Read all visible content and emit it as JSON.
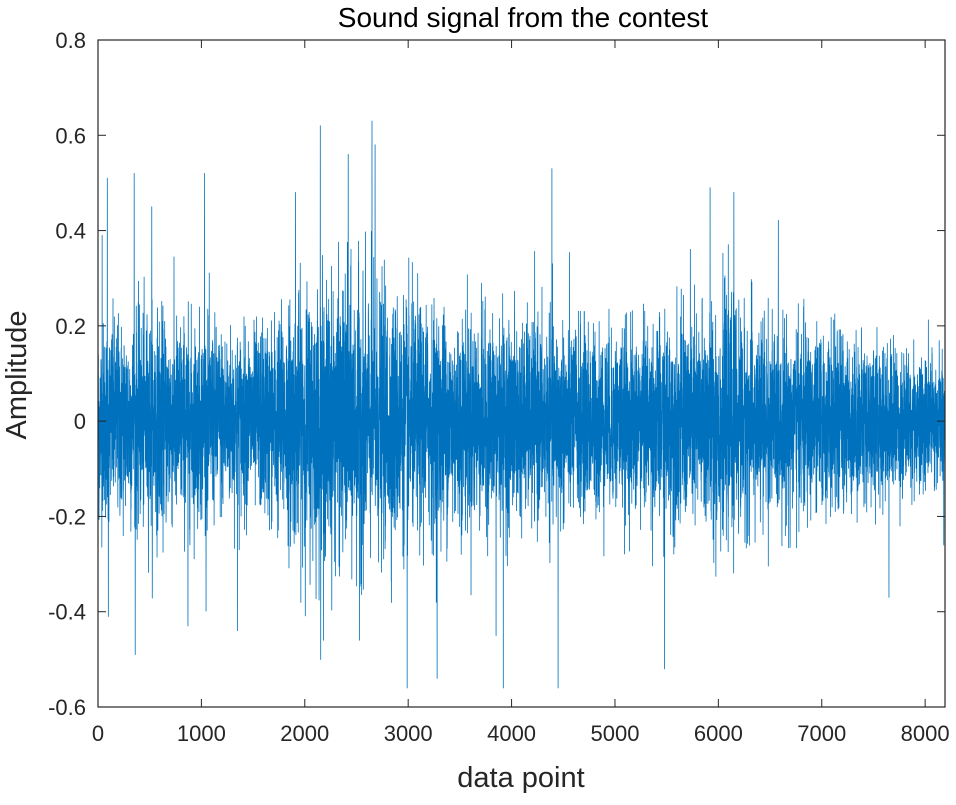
{
  "chart_data": {
    "type": "line",
    "title": "Sound signal from the contest",
    "xlabel": "data point",
    "ylabel": "Amplitude",
    "xlim": [
      0,
      8192
    ],
    "ylim": [
      -0.6,
      0.8
    ],
    "x_ticks": [
      0,
      1000,
      2000,
      3000,
      4000,
      5000,
      6000,
      7000,
      8000
    ],
    "x_tick_labels": [
      "0",
      "1000",
      "2000",
      "3000",
      "4000",
      "5000",
      "6000",
      "7000",
      "8000"
    ],
    "y_ticks": [
      -0.6,
      -0.4,
      -0.2,
      0,
      0.2,
      0.4,
      0.6,
      0.8
    ],
    "y_tick_labels": [
      "-0.6",
      "-0.4",
      "-0.2",
      "0",
      "0.2",
      "0.4",
      "0.6",
      "0.8"
    ],
    "grid": false,
    "box": true,
    "series": [
      {
        "color": "#0072BD",
        "num_points": 8192,
        "description_stats": {
          "min": -0.56,
          "max": 0.63
        },
        "envelope": {
          "x": [
            0,
            500,
            1000,
            1500,
            2000,
            2500,
            3000,
            3500,
            4000,
            4500,
            5000,
            5500,
            6000,
            6500,
            7000,
            7500,
            8000,
            8192
          ],
          "rms": [
            0.1,
            0.11,
            0.1,
            0.09,
            0.13,
            0.14,
            0.12,
            0.11,
            0.1,
            0.1,
            0.09,
            0.1,
            0.12,
            0.1,
            0.09,
            0.08,
            0.07,
            0.07
          ]
        },
        "peaks": [
          {
            "x": 40,
            "y": 0.39
          },
          {
            "x": 90,
            "y": 0.51
          },
          {
            "x": 100,
            "y": -0.41
          },
          {
            "x": 350,
            "y": 0.52
          },
          {
            "x": 360,
            "y": -0.49
          },
          {
            "x": 520,
            "y": 0.45
          },
          {
            "x": 870,
            "y": -0.43
          },
          {
            "x": 1030,
            "y": 0.52
          },
          {
            "x": 1350,
            "y": -0.44
          },
          {
            "x": 1910,
            "y": 0.48
          },
          {
            "x": 2150,
            "y": 0.62
          },
          {
            "x": 2180,
            "y": -0.46
          },
          {
            "x": 2420,
            "y": 0.56
          },
          {
            "x": 2530,
            "y": -0.46
          },
          {
            "x": 2650,
            "y": 0.63
          },
          {
            "x": 2680,
            "y": 0.58
          },
          {
            "x": 2990,
            "y": -0.56
          },
          {
            "x": 3280,
            "y": -0.54
          },
          {
            "x": 3850,
            "y": -0.45
          },
          {
            "x": 3920,
            "y": -0.56
          },
          {
            "x": 4390,
            "y": 0.53
          },
          {
            "x": 4450,
            "y": -0.56
          },
          {
            "x": 5480,
            "y": -0.52
          },
          {
            "x": 5920,
            "y": 0.49
          },
          {
            "x": 6150,
            "y": 0.48
          },
          {
            "x": 7650,
            "y": -0.37
          },
          {
            "x": 8180,
            "y": -0.26
          }
        ]
      }
    ]
  }
}
